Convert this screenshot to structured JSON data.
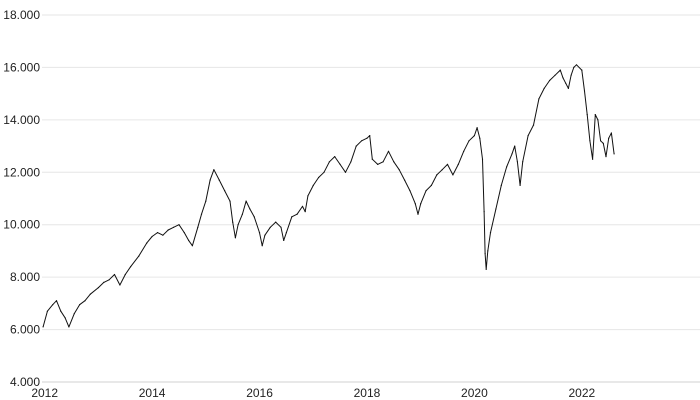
{
  "chart_data": {
    "type": "line",
    "title": "",
    "xlabel": "",
    "ylabel": "",
    "xlim": [
      2011.95,
      2024.2
    ],
    "ylim": [
      4000,
      18000
    ],
    "grid": true,
    "legend": "none",
    "x_ticks": [
      {
        "value": 2012,
        "label": "2012"
      },
      {
        "value": 2014,
        "label": "2014"
      },
      {
        "value": 2016,
        "label": "2016"
      },
      {
        "value": 2018,
        "label": "2018"
      },
      {
        "value": 2020,
        "label": "2020"
      },
      {
        "value": 2022,
        "label": "2022"
      }
    ],
    "y_ticks": [
      {
        "value": 4000,
        "label": "4.000"
      },
      {
        "value": 6000,
        "label": "6.000"
      },
      {
        "value": 8000,
        "label": "8.000"
      },
      {
        "value": 10000,
        "label": "10.000"
      },
      {
        "value": 12000,
        "label": "12.000"
      },
      {
        "value": 14000,
        "label": "14.000"
      },
      {
        "value": 16000,
        "label": "16.000"
      },
      {
        "value": 18000,
        "label": "18.000"
      }
    ],
    "series": [
      {
        "color": "#111111",
        "x": [
          2011.97,
          2012.05,
          2012.15,
          2012.22,
          2012.3,
          2012.38,
          2012.45,
          2012.55,
          2012.65,
          2012.75,
          2012.85,
          2013.0,
          2013.1,
          2013.2,
          2013.3,
          2013.4,
          2013.5,
          2013.6,
          2013.75,
          2013.9,
          2014.0,
          2014.1,
          2014.2,
          2014.3,
          2014.4,
          2014.5,
          2014.6,
          2014.68,
          2014.75,
          2014.85,
          2014.92,
          2015.0,
          2015.08,
          2015.15,
          2015.25,
          2015.35,
          2015.45,
          2015.5,
          2015.55,
          2015.6,
          2015.68,
          2015.75,
          2015.82,
          2015.9,
          2016.0,
          2016.05,
          2016.1,
          2016.2,
          2016.3,
          2016.4,
          2016.45,
          2016.5,
          2016.6,
          2016.7,
          2016.8,
          2016.85,
          2016.9,
          2017.0,
          2017.1,
          2017.2,
          2017.3,
          2017.4,
          2017.5,
          2017.6,
          2017.7,
          2017.8,
          2017.9,
          2018.0,
          2018.05,
          2018.1,
          2018.2,
          2018.3,
          2018.4,
          2018.5,
          2018.6,
          2018.7,
          2018.8,
          2018.9,
          2018.95,
          2019.0,
          2019.1,
          2019.2,
          2019.3,
          2019.4,
          2019.5,
          2019.6,
          2019.7,
          2019.8,
          2019.9,
          2020.0,
          2020.05,
          2020.1,
          2020.15,
          2020.18,
          2020.2,
          2020.22,
          2020.25,
          2020.3,
          2020.4,
          2020.5,
          2020.6,
          2020.7,
          2020.75,
          2020.8,
          2020.85,
          2020.9,
          2021.0,
          2021.1,
          2021.2,
          2021.3,
          2021.4,
          2021.5,
          2021.6,
          2021.65,
          2021.7,
          2021.75,
          2021.8,
          2021.85,
          2021.9,
          2022.0,
          2022.05,
          2022.1,
          2022.15,
          2022.2,
          2022.25,
          2022.3,
          2022.35,
          2022.4,
          2022.45,
          2022.5,
          2022.55,
          2022.6
        ],
        "values": [
          6100,
          6700,
          6950,
          7100,
          6700,
          6450,
          6100,
          6600,
          6950,
          7100,
          7350,
          7600,
          7800,
          7900,
          8100,
          7700,
          8100,
          8400,
          8800,
          9300,
          9550,
          9700,
          9600,
          9800,
          9900,
          10000,
          9700,
          9400,
          9200,
          9900,
          10400,
          10900,
          11700,
          12100,
          11700,
          11300,
          10900,
          10100,
          9500,
          10000,
          10400,
          10900,
          10600,
          10300,
          9700,
          9200,
          9600,
          9900,
          10100,
          9900,
          9400,
          9700,
          10300,
          10400,
          10700,
          10500,
          11100,
          11500,
          11800,
          12000,
          12400,
          12600,
          12300,
          12000,
          12400,
          13000,
          13200,
          13300,
          13400,
          12500,
          12300,
          12400,
          12800,
          12400,
          12100,
          11700,
          11300,
          10800,
          10400,
          10800,
          11300,
          11500,
          11900,
          12100,
          12300,
          11900,
          12300,
          12800,
          13200,
          13400,
          13700,
          13300,
          12500,
          10500,
          8900,
          8300,
          9000,
          9700,
          10600,
          11500,
          12200,
          12700,
          13000,
          12400,
          11500,
          12400,
          13400,
          13800,
          14800,
          15200,
          15500,
          15700,
          15900,
          15600,
          15400,
          15200,
          15700,
          16000,
          16100,
          15900,
          15100,
          14200,
          13200,
          12500,
          14200,
          14000,
          13200,
          13100,
          12600,
          13300,
          13500,
          12700
        ]
      }
    ]
  }
}
